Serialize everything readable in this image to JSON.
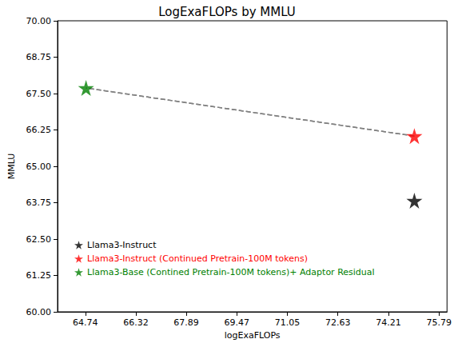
{
  "chart_data": {
    "type": "scatter",
    "title": "LogExaFLOPs by MMLU",
    "x_label": "logExaFLOPs",
    "y_label": "MMLU",
    "xlim": [
      63.87,
      76.04
    ],
    "xticks": [
      64.74,
      66.32,
      67.89,
      69.47,
      71.05,
      72.63,
      74.21,
      75.79
    ],
    "ylim": [
      60,
      70
    ],
    "yticks": [
      {
        "value": 60,
        "label": "60.00"
      },
      61.25,
      {
        "value": 62.5,
        "label": "62.50"
      },
      63.75,
      {
        "value": 65,
        "label": "65.00"
      },
      66.25,
      {
        "value": 67.5,
        "label": "67.50"
      },
      68.75,
      {
        "value": 70,
        "label": "70.00"
      }
    ],
    "grid": false,
    "legend": "lower left",
    "series": [
      {
        "name": "Llama3-Instruct",
        "color": "#000000",
        "marker": "star",
        "x": [
          75.02
        ],
        "values": [
          63.82
        ]
      },
      {
        "name": "Llama3-Instruct (Continued Pretrain-100M tokens)",
        "color": "#ff0000",
        "marker": "star",
        "x": [
          75.02
        ],
        "values": [
          66.04
        ]
      },
      {
        "name": "Llama3-Base (Contined Pretrain-100M tokens)+ Adaptor Residual",
        "color": "#008000",
        "marker": "star",
        "x": [
          64.76
        ],
        "values": [
          67.69
        ]
      },
      {
        "type": "line",
        "line_style": "dashed",
        "marker": "arrow",
        "color": "#808080",
        "x": [
          75.02,
          64.76
        ],
        "values": [
          66.04,
          67.69
        ]
      }
    ]
  }
}
